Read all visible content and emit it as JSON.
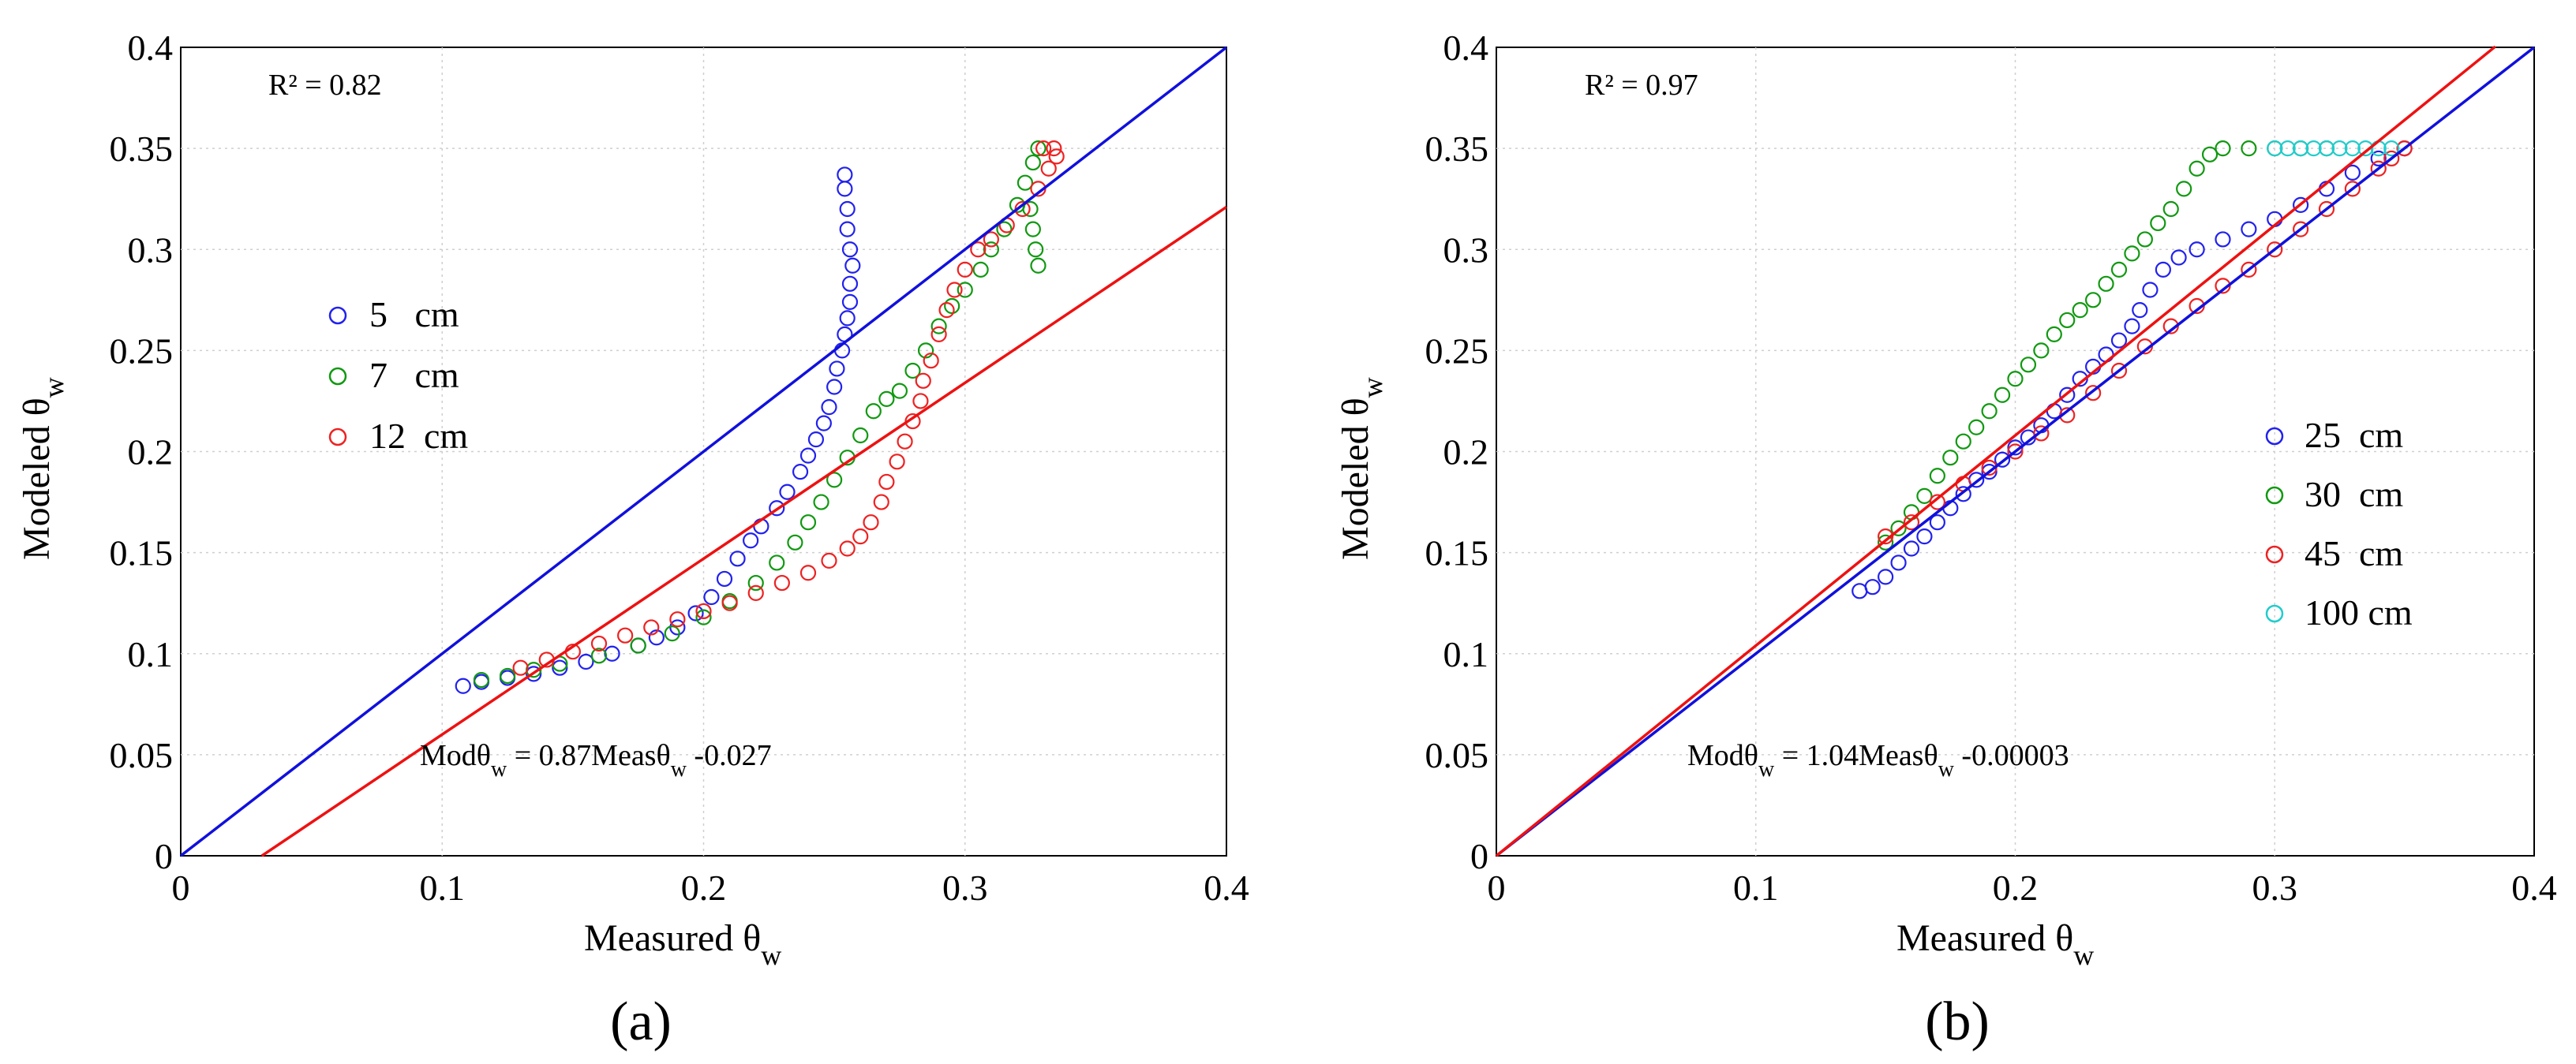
{
  "panels": [
    {
      "id": "a",
      "caption": "(a)",
      "r2_text": "R² = 0.82",
      "xlabel": "Measured θ",
      "xlabel_sub": "w",
      "ylabel": "Modeled θ",
      "ylabel_sub": "w",
      "xlim": [
        0,
        0.4
      ],
      "ylim": [
        0,
        0.4
      ],
      "xticks": [
        "0",
        "0.1",
        "0.2",
        "0.3",
        "0.4"
      ],
      "yticks": [
        "0",
        "0.05",
        "0.1",
        "0.15",
        "0.2",
        "0.25",
        "0.3",
        "0.35",
        "0.4"
      ],
      "equation": {
        "pre": "Modθ",
        "sub1": "w",
        "mid": " = 0.87Measθ",
        "sub2": "w",
        "post": " -0.027"
      },
      "legend": [
        "5   cm",
        "7   cm",
        "12  cm"
      ],
      "colors": [
        "#2222ee",
        "#119911",
        "#ee2222"
      ],
      "one_to_one": {
        "color": "#1010dd",
        "from": [
          0,
          0
        ],
        "to": [
          0.4,
          0.4
        ]
      },
      "fit_line": {
        "color": "#ee1111",
        "slope": 0.87,
        "intercept": -0.027,
        "x_from": 0.031,
        "x_to": 0.4
      },
      "series": [
        {
          "name": "5 cm",
          "color": "#2222ee",
          "points": [
            [
              0.108,
              0.084
            ],
            [
              0.115,
              0.086
            ],
            [
              0.125,
              0.088
            ],
            [
              0.135,
              0.09
            ],
            [
              0.145,
              0.093
            ],
            [
              0.155,
              0.096
            ],
            [
              0.165,
              0.1
            ],
            [
              0.175,
              0.104
            ],
            [
              0.182,
              0.108
            ],
            [
              0.19,
              0.113
            ],
            [
              0.197,
              0.12
            ],
            [
              0.203,
              0.128
            ],
            [
              0.208,
              0.137
            ],
            [
              0.213,
              0.147
            ],
            [
              0.218,
              0.156
            ],
            [
              0.222,
              0.163
            ],
            [
              0.228,
              0.172
            ],
            [
              0.232,
              0.18
            ],
            [
              0.237,
              0.19
            ],
            [
              0.24,
              0.198
            ],
            [
              0.243,
              0.206
            ],
            [
              0.246,
              0.214
            ],
            [
              0.248,
              0.222
            ],
            [
              0.25,
              0.232
            ],
            [
              0.251,
              0.241
            ],
            [
              0.253,
              0.25
            ],
            [
              0.254,
              0.258
            ],
            [
              0.255,
              0.266
            ],
            [
              0.256,
              0.274
            ],
            [
              0.256,
              0.283
            ],
            [
              0.257,
              0.292
            ],
            [
              0.256,
              0.3
            ],
            [
              0.255,
              0.31
            ],
            [
              0.255,
              0.32
            ],
            [
              0.254,
              0.33
            ],
            [
              0.254,
              0.337
            ]
          ]
        },
        {
          "name": "7 cm",
          "color": "#119911",
          "points": [
            [
              0.115,
              0.087
            ],
            [
              0.125,
              0.089
            ],
            [
              0.135,
              0.092
            ],
            [
              0.145,
              0.095
            ],
            [
              0.16,
              0.099
            ],
            [
              0.175,
              0.104
            ],
            [
              0.188,
              0.11
            ],
            [
              0.2,
              0.118
            ],
            [
              0.21,
              0.126
            ],
            [
              0.22,
              0.135
            ],
            [
              0.228,
              0.145
            ],
            [
              0.235,
              0.155
            ],
            [
              0.24,
              0.165
            ],
            [
              0.245,
              0.175
            ],
            [
              0.25,
              0.186
            ],
            [
              0.255,
              0.197
            ],
            [
              0.26,
              0.208
            ],
            [
              0.265,
              0.22
            ],
            [
              0.27,
              0.226
            ],
            [
              0.275,
              0.23
            ],
            [
              0.28,
              0.24
            ],
            [
              0.285,
              0.25
            ],
            [
              0.29,
              0.262
            ],
            [
              0.295,
              0.272
            ],
            [
              0.3,
              0.28
            ],
            [
              0.306,
              0.29
            ],
            [
              0.31,
              0.3
            ],
            [
              0.315,
              0.31
            ],
            [
              0.32,
              0.322
            ],
            [
              0.323,
              0.333
            ],
            [
              0.326,
              0.343
            ],
            [
              0.328,
              0.35
            ],
            [
              0.325,
              0.32
            ],
            [
              0.326,
              0.31
            ],
            [
              0.327,
              0.3
            ],
            [
              0.328,
              0.292
            ]
          ]
        },
        {
          "name": "12 cm",
          "color": "#ee2222",
          "points": [
            [
              0.13,
              0.093
            ],
            [
              0.14,
              0.097
            ],
            [
              0.15,
              0.101
            ],
            [
              0.16,
              0.105
            ],
            [
              0.17,
              0.109
            ],
            [
              0.18,
              0.113
            ],
            [
              0.19,
              0.117
            ],
            [
              0.2,
              0.121
            ],
            [
              0.21,
              0.125
            ],
            [
              0.22,
              0.13
            ],
            [
              0.23,
              0.135
            ],
            [
              0.24,
              0.14
            ],
            [
              0.248,
              0.146
            ],
            [
              0.255,
              0.152
            ],
            [
              0.26,
              0.158
            ],
            [
              0.264,
              0.165
            ],
            [
              0.268,
              0.175
            ],
            [
              0.27,
              0.185
            ],
            [
              0.274,
              0.195
            ],
            [
              0.277,
              0.205
            ],
            [
              0.28,
              0.215
            ],
            [
              0.283,
              0.225
            ],
            [
              0.284,
              0.235
            ],
            [
              0.287,
              0.245
            ],
            [
              0.29,
              0.258
            ],
            [
              0.293,
              0.27
            ],
            [
              0.296,
              0.28
            ],
            [
              0.3,
              0.29
            ],
            [
              0.305,
              0.3
            ],
            [
              0.31,
              0.305
            ],
            [
              0.316,
              0.312
            ],
            [
              0.322,
              0.32
            ],
            [
              0.328,
              0.33
            ],
            [
              0.332,
              0.34
            ],
            [
              0.335,
              0.346
            ],
            [
              0.33,
              0.35
            ],
            [
              0.334,
              0.35
            ]
          ]
        }
      ]
    },
    {
      "id": "b",
      "caption": "(b)",
      "r2_text": "R² = 0.97",
      "xlabel": "Measured θ",
      "xlabel_sub": "w",
      "ylabel": "Modeled θ",
      "ylabel_sub": "w",
      "xlim": [
        0,
        0.4
      ],
      "ylim": [
        0,
        0.4
      ],
      "xticks": [
        "0",
        "0.1",
        "0.2",
        "0.3",
        "0.4"
      ],
      "yticks": [
        "0",
        "0.05",
        "0.1",
        "0.15",
        "0.2",
        "0.25",
        "0.3",
        "0.35",
        "0.4"
      ],
      "equation": {
        "pre": "Modθ",
        "sub1": "w",
        "mid": " = 1.04Measθ",
        "sub2": "w",
        "post": " -0.00003"
      },
      "legend": [
        "25  cm",
        "30  cm",
        "45  cm",
        "100 cm"
      ],
      "colors": [
        "#2222ee",
        "#119911",
        "#ee2222",
        "#22cccc"
      ],
      "one_to_one": {
        "color": "#1010dd",
        "from": [
          0,
          0
        ],
        "to": [
          0.4,
          0.4
        ]
      },
      "fit_line": {
        "color": "#ee1111",
        "slope": 1.04,
        "intercept": -3e-05,
        "x_from": 0,
        "x_to": 0.385
      },
      "series": [
        {
          "name": "25 cm",
          "color": "#2222ee",
          "points": [
            [
              0.14,
              0.131
            ],
            [
              0.145,
              0.133
            ],
            [
              0.15,
              0.138
            ],
            [
              0.155,
              0.145
            ],
            [
              0.16,
              0.152
            ],
            [
              0.165,
              0.158
            ],
            [
              0.17,
              0.165
            ],
            [
              0.175,
              0.172
            ],
            [
              0.18,
              0.179
            ],
            [
              0.185,
              0.186
            ],
            [
              0.19,
              0.19
            ],
            [
              0.195,
              0.196
            ],
            [
              0.2,
              0.202
            ],
            [
              0.205,
              0.207
            ],
            [
              0.21,
              0.213
            ],
            [
              0.215,
              0.22
            ],
            [
              0.22,
              0.228
            ],
            [
              0.225,
              0.236
            ],
            [
              0.23,
              0.242
            ],
            [
              0.235,
              0.248
            ],
            [
              0.24,
              0.255
            ],
            [
              0.245,
              0.262
            ],
            [
              0.248,
              0.27
            ],
            [
              0.252,
              0.28
            ],
            [
              0.257,
              0.29
            ],
            [
              0.263,
              0.296
            ],
            [
              0.27,
              0.3
            ],
            [
              0.28,
              0.305
            ],
            [
              0.29,
              0.31
            ],
            [
              0.3,
              0.315
            ],
            [
              0.31,
              0.322
            ],
            [
              0.32,
              0.33
            ],
            [
              0.33,
              0.338
            ],
            [
              0.34,
              0.345
            ],
            [
              0.35,
              0.35
            ]
          ]
        },
        {
          "name": "30 cm",
          "color": "#119911",
          "points": [
            [
              0.15,
              0.155
            ],
            [
              0.155,
              0.162
            ],
            [
              0.16,
              0.17
            ],
            [
              0.165,
              0.178
            ],
            [
              0.17,
              0.188
            ],
            [
              0.175,
              0.197
            ],
            [
              0.18,
              0.205
            ],
            [
              0.185,
              0.212
            ],
            [
              0.19,
              0.22
            ],
            [
              0.195,
              0.228
            ],
            [
              0.2,
              0.236
            ],
            [
              0.205,
              0.243
            ],
            [
              0.21,
              0.25
            ],
            [
              0.215,
              0.258
            ],
            [
              0.22,
              0.265
            ],
            [
              0.225,
              0.27
            ],
            [
              0.23,
              0.275
            ],
            [
              0.235,
              0.283
            ],
            [
              0.24,
              0.29
            ],
            [
              0.245,
              0.298
            ],
            [
              0.25,
              0.305
            ],
            [
              0.255,
              0.313
            ],
            [
              0.26,
              0.32
            ],
            [
              0.265,
              0.33
            ],
            [
              0.27,
              0.34
            ],
            [
              0.275,
              0.347
            ],
            [
              0.28,
              0.35
            ],
            [
              0.29,
              0.35
            ],
            [
              0.3,
              0.35
            ],
            [
              0.31,
              0.35
            ],
            [
              0.32,
              0.35
            ]
          ]
        },
        {
          "name": "45 cm",
          "color": "#ee2222",
          "points": [
            [
              0.15,
              0.158
            ],
            [
              0.16,
              0.165
            ],
            [
              0.17,
              0.175
            ],
            [
              0.18,
              0.184
            ],
            [
              0.19,
              0.192
            ],
            [
              0.2,
              0.2
            ],
            [
              0.21,
              0.209
            ],
            [
              0.22,
              0.218
            ],
            [
              0.23,
              0.229
            ],
            [
              0.24,
              0.24
            ],
            [
              0.25,
              0.252
            ],
            [
              0.26,
              0.262
            ],
            [
              0.27,
              0.272
            ],
            [
              0.28,
              0.282
            ],
            [
              0.29,
              0.29
            ],
            [
              0.3,
              0.3
            ],
            [
              0.31,
              0.31
            ],
            [
              0.32,
              0.32
            ],
            [
              0.33,
              0.33
            ],
            [
              0.34,
              0.34
            ],
            [
              0.345,
              0.345
            ],
            [
              0.35,
              0.35
            ]
          ]
        },
        {
          "name": "100 cm",
          "color": "#22cccc",
          "points": [
            [
              0.3,
              0.35
            ],
            [
              0.305,
              0.35
            ],
            [
              0.31,
              0.35
            ],
            [
              0.315,
              0.35
            ],
            [
              0.32,
              0.35
            ],
            [
              0.325,
              0.35
            ],
            [
              0.33,
              0.35
            ],
            [
              0.335,
              0.35
            ],
            [
              0.34,
              0.35
            ],
            [
              0.345,
              0.35
            ]
          ]
        }
      ]
    }
  ]
}
